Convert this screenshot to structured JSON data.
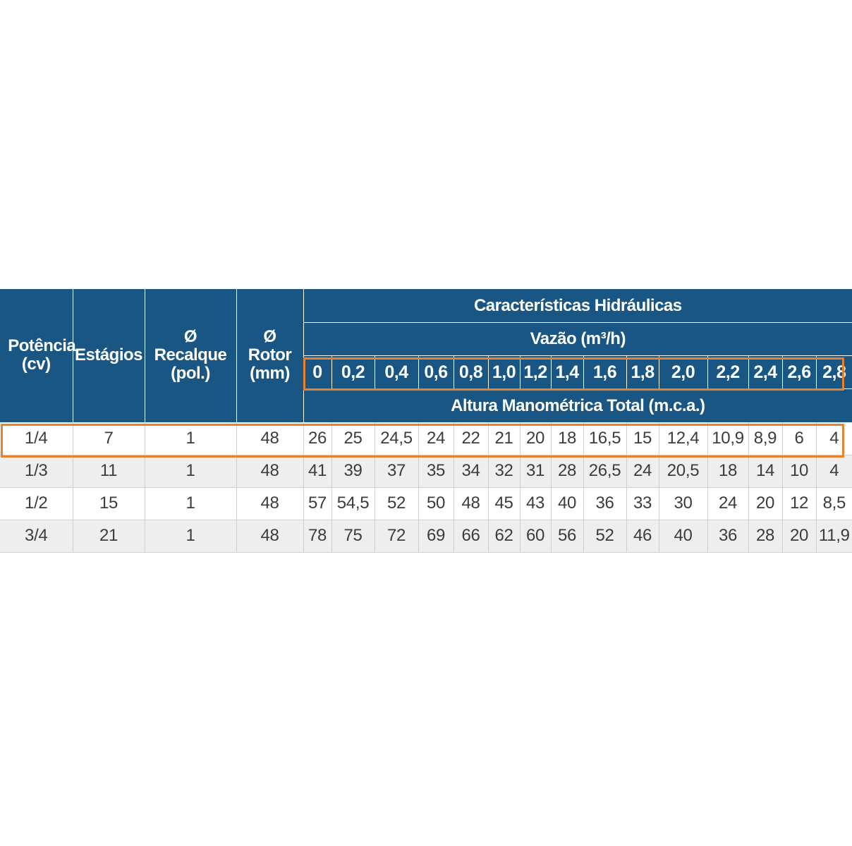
{
  "table": {
    "headers": {
      "potencia": "Potência (cv)",
      "estagios": "Estágios",
      "recalque": "Ø Recalque (pol.)",
      "rotor": "Ø Rotor (mm)",
      "hydraulics_title": "Características Hidráulicas",
      "flow_title": "Vazão (m³/h)",
      "head_title": "Altura Manométrica Total (m.c.a.)"
    },
    "flow_values": [
      "0",
      "0,2",
      "0,4",
      "0,6",
      "0,8",
      "1,0",
      "1,2",
      "1,4",
      "1,6",
      "1,8",
      "2,0",
      "2,2",
      "2,4",
      "2,6",
      "2,8"
    ],
    "rows": [
      {
        "potencia": "1/4",
        "estagios": "7",
        "recalque": "1",
        "rotor": "48",
        "heads": [
          "26",
          "25",
          "24,5",
          "24",
          "22",
          "21",
          "20",
          "18",
          "16,5",
          "15",
          "12,4",
          "10,9",
          "8,9",
          "6",
          "4"
        ]
      },
      {
        "potencia": "1/3",
        "estagios": "11",
        "recalque": "1",
        "rotor": "48",
        "heads": [
          "41",
          "39",
          "37",
          "35",
          "34",
          "32",
          "31",
          "28",
          "26,5",
          "24",
          "20,5",
          "18",
          "14",
          "10",
          "4"
        ]
      },
      {
        "potencia": "1/2",
        "estagios": "15",
        "recalque": "1",
        "rotor": "48",
        "heads": [
          "57",
          "54,5",
          "52",
          "50",
          "48",
          "45",
          "43",
          "40",
          "36",
          "33",
          "30",
          "24",
          "20",
          "12",
          "8,5"
        ]
      },
      {
        "potencia": "3/4",
        "estagios": "21",
        "recalque": "1",
        "rotor": "48",
        "heads": [
          "78",
          "75",
          "72",
          "69",
          "66",
          "62",
          "60",
          "56",
          "52",
          "46",
          "40",
          "36",
          "28",
          "20",
          "11,9"
        ]
      }
    ]
  },
  "colors": {
    "header_bg": "#1a5684",
    "header_text": "#ffffff",
    "highlight": "#e8822e",
    "row_alt": "#eeeeee",
    "cell_text": "#3c3c3c"
  }
}
